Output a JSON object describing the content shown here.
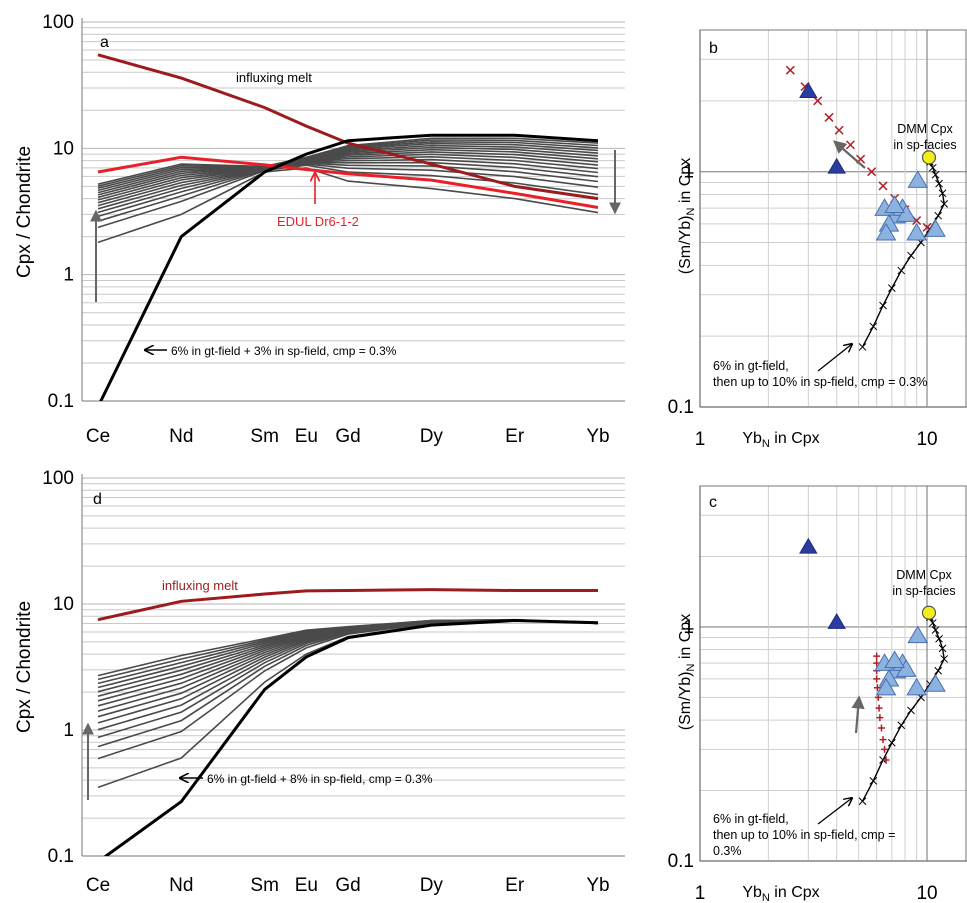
{
  "chart_data": [
    {
      "panel": "a",
      "type": "line",
      "y_scale": "log",
      "ylim": [
        0.1,
        100
      ],
      "ylabel": "Cpx / Chondrite",
      "y_ticks": [
        "0.1",
        "1",
        "10",
        "100"
      ],
      "categories": [
        "Ce",
        "Nd",
        "Sm",
        "Eu",
        "Gd",
        "Dy",
        "Er",
        "Yb"
      ],
      "cat_pos": [
        0,
        1,
        2,
        2.5,
        3,
        4,
        5,
        6
      ],
      "series": [
        {
          "name": "influxing melt",
          "color": "#9b1b1e",
          "width": 3,
          "values": [
            55,
            36,
            21,
            15,
            11,
            7.5,
            5,
            4
          ]
        },
        {
          "name": "EDUL Dr6-1-2",
          "color": "#e8202a",
          "width": 3,
          "values": [
            6.5,
            8.5,
            7.4,
            6.8,
            6.3,
            5.6,
            4.4,
            3.4
          ]
        },
        {
          "name": "",
          "color": "#000000",
          "width": 3,
          "values": [
            0.09,
            2,
            6.5,
            9,
            11.5,
            12.7,
            12.7,
            11.5
          ]
        }
      ],
      "family_endpoints": {
        "start": [
          1.8,
          3,
          6.5,
          7,
          5.5,
          4.8,
          4,
          3.1
        ],
        "end": [
          5.2,
          7.5,
          7.2,
          8.5,
          10.5,
          12,
          12,
          11
        ]
      },
      "family_count": 16,
      "annotations": {
        "label": "a",
        "melt": "influxing melt",
        "sample": "EDUL Dr6-1-2",
        "model": "6% in gt-field + 3% in sp-field, cmp = 0.3%"
      }
    },
    {
      "panel": "b",
      "type": "scatter",
      "x_scale": "log",
      "y_scale": "log",
      "xlim": [
        1,
        15
      ],
      "ylim": [
        0.1,
        4
      ],
      "xlabel_main": "Yb",
      "xlabel_sub": "N",
      "xlabel_tail": " in Cpx",
      "ylabel_main": "(Sm/Yb)",
      "ylabel_sub": "N",
      "ylabel_tail": " in Cpx",
      "x_ticks": [
        "1",
        "10"
      ],
      "y_ticks": [
        "0.1",
        "1"
      ],
      "dark_triangles": [
        [
          3.0,
          2.2
        ],
        [
          4.0,
          1.05
        ]
      ],
      "light_triangles": [
        [
          6.5,
          0.7
        ],
        [
          7.3,
          0.65
        ],
        [
          6.8,
          0.6
        ],
        [
          7.8,
          0.7
        ],
        [
          8.1,
          0.66
        ],
        [
          6.6,
          0.55
        ],
        [
          9.1,
          0.92
        ],
        [
          9.0,
          0.55
        ],
        [
          10.9,
          0.57
        ],
        [
          7.2,
          0.72
        ]
      ],
      "dmm_point": [
        10.2,
        1.15
      ],
      "melt_crosses": [
        [
          2.5,
          2.7
        ],
        [
          2.9,
          2.3
        ],
        [
          3.3,
          2.0
        ],
        [
          3.7,
          1.7
        ],
        [
          4.1,
          1.5
        ],
        [
          4.6,
          1.3
        ],
        [
          5.1,
          1.13
        ],
        [
          5.7,
          1.0
        ],
        [
          6.4,
          0.87
        ],
        [
          7.2,
          0.77
        ],
        [
          8.0,
          0.69
        ],
        [
          9.0,
          0.62
        ],
        [
          10.0,
          0.58
        ]
      ],
      "model_path": [
        [
          5.2,
          0.18
        ],
        [
          5.8,
          0.22
        ],
        [
          6.4,
          0.27
        ],
        [
          7.0,
          0.32
        ],
        [
          7.7,
          0.38
        ],
        [
          8.5,
          0.44
        ],
        [
          9.4,
          0.5
        ],
        [
          10.3,
          0.57
        ],
        [
          11.2,
          0.65
        ],
        [
          11.9,
          0.73
        ],
        [
          11.7,
          0.81
        ],
        [
          11.3,
          0.89
        ],
        [
          10.9,
          0.97
        ],
        [
          10.6,
          1.04
        ],
        [
          10.3,
          1.1
        ]
      ],
      "annotations": {
        "label": "b",
        "dmm_line1": "DMM Cpx",
        "dmm_line2": "in sp-facies",
        "model_line1": "6% in gt-field,",
        "model_line2": "then up to 10% in sp-field, cmp = 0.3%"
      }
    },
    {
      "panel": "c",
      "type": "scatter",
      "x_scale": "log",
      "y_scale": "log",
      "xlim": [
        1,
        15
      ],
      "ylim": [
        0.1,
        4
      ],
      "xlabel_main": "Yb",
      "xlabel_sub": "N",
      "xlabel_tail": " in Cpx",
      "ylabel_main": "(Sm/Yb)",
      "ylabel_sub": "N",
      "ylabel_tail": " in Cpx",
      "x_ticks": [
        "1",
        "10"
      ],
      "y_ticks": [
        "0.1",
        "1"
      ],
      "dark_triangles": [
        [
          3.0,
          2.2
        ],
        [
          4.0,
          1.05
        ]
      ],
      "light_triangles": [
        [
          6.5,
          0.7
        ],
        [
          7.3,
          0.65
        ],
        [
          6.8,
          0.6
        ],
        [
          7.8,
          0.7
        ],
        [
          8.1,
          0.66
        ],
        [
          6.6,
          0.55
        ],
        [
          9.1,
          0.92
        ],
        [
          9.0,
          0.55
        ],
        [
          10.9,
          0.57
        ],
        [
          7.2,
          0.72
        ]
      ],
      "dmm_point": [
        10.2,
        1.15
      ],
      "melt_crosses": [
        [
          6.6,
          0.27
        ],
        [
          6.5,
          0.3
        ],
        [
          6.4,
          0.33
        ],
        [
          6.3,
          0.37
        ],
        [
          6.2,
          0.41
        ],
        [
          6.15,
          0.45
        ],
        [
          6.1,
          0.5
        ],
        [
          6.05,
          0.55
        ],
        [
          6.0,
          0.6
        ],
        [
          6.0,
          0.65
        ],
        [
          6.0,
          0.7
        ],
        [
          6.0,
          0.75
        ]
      ],
      "model_path": [
        [
          5.2,
          0.18
        ],
        [
          5.8,
          0.22
        ],
        [
          6.4,
          0.27
        ],
        [
          7.0,
          0.32
        ],
        [
          7.7,
          0.38
        ],
        [
          8.5,
          0.44
        ],
        [
          9.4,
          0.5
        ],
        [
          10.3,
          0.57
        ],
        [
          11.2,
          0.65
        ],
        [
          11.9,
          0.73
        ],
        [
          11.7,
          0.81
        ],
        [
          11.3,
          0.89
        ],
        [
          10.9,
          0.97
        ],
        [
          10.6,
          1.04
        ],
        [
          10.3,
          1.1
        ]
      ],
      "annotations": {
        "label": "c",
        "dmm_line1": "DMM Cpx",
        "dmm_line2": "in sp-facies",
        "model_line1": "6% in gt-field,",
        "model_line2": "then up to 10% in sp-field, cmp =",
        "model_line3": "0.3%"
      }
    },
    {
      "panel": "d",
      "type": "line",
      "y_scale": "log",
      "ylim": [
        0.1,
        100
      ],
      "ylabel": "Cpx / Chondrite",
      "y_ticks": [
        "0.1",
        "1",
        "10",
        "100"
      ],
      "categories": [
        "Ce",
        "Nd",
        "Sm",
        "Eu",
        "Gd",
        "Dy",
        "Er",
        "Yb"
      ],
      "cat_pos": [
        0,
        1,
        2,
        2.5,
        3,
        4,
        5,
        6
      ],
      "series": [
        {
          "name": "influxing melt",
          "color": "#9b1b1e",
          "width": 3,
          "values": [
            7.5,
            10.5,
            12,
            12.7,
            12.8,
            13,
            12.8,
            12.8
          ]
        },
        {
          "name": "",
          "color": "#000000",
          "width": 3,
          "values": [
            0.09,
            0.27,
            2.1,
            3.8,
            5.4,
            6.8,
            7.4,
            7.1
          ]
        }
      ],
      "family_endpoints": {
        "start": [
          0.35,
          0.6,
          2.4,
          4.0,
          5.5,
          6.9,
          7.4,
          7.1
        ],
        "end": [
          2.7,
          3.9,
          5.3,
          6.2,
          6.6,
          7.4,
          7.5,
          7.0
        ]
      },
      "family_count": 16,
      "annotations": {
        "label": "d",
        "melt": "influxing melt",
        "model": "6% in gt-field + 8% in sp-field, cmp = 0.3%"
      }
    }
  ]
}
